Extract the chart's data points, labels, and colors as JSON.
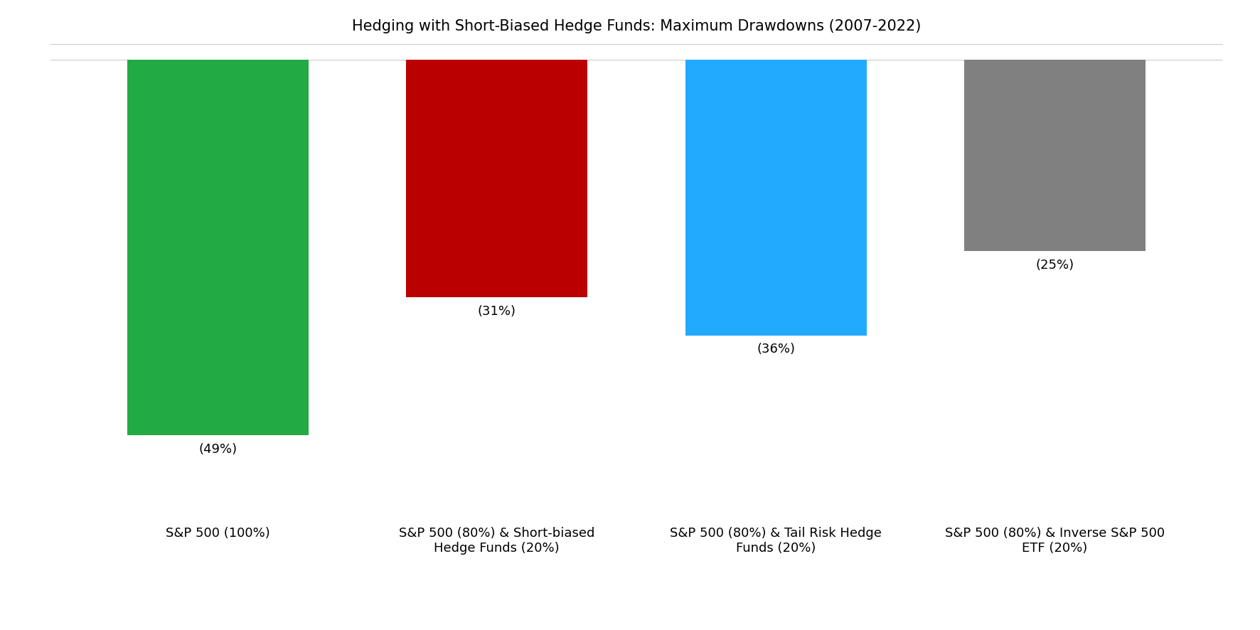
{
  "title": "Hedging with Short-Biased Hedge Funds: Maximum Drawdowns (2007-2022)",
  "title_fontsize": 15,
  "bars": [
    {
      "label": "S&P 500 (100%)",
      "value": -49,
      "display": "(49%)",
      "color": "#22aa44"
    },
    {
      "label": "S&P 500 (80%) & Short-biased\nHedge Funds (20%)",
      "value": -31,
      "display": "(31%)",
      "color": "#bb0000"
    },
    {
      "label": "S&P 500 (80%) & Tail Risk Hedge\nFunds (20%)",
      "value": -36,
      "display": "(36%)",
      "color": "#22aaff"
    },
    {
      "label": "S&P 500 (80%) & Inverse S&P 500\nETF (20%)",
      "value": -25,
      "display": "(25%)",
      "color": "#808080"
    }
  ],
  "ylim": [
    -58,
    2
  ],
  "bar_width": 0.65,
  "background_color": "#ffffff",
  "label_fontsize": 13,
  "annotation_fontsize": 13,
  "x_positions": [
    0,
    1,
    2,
    3
  ]
}
